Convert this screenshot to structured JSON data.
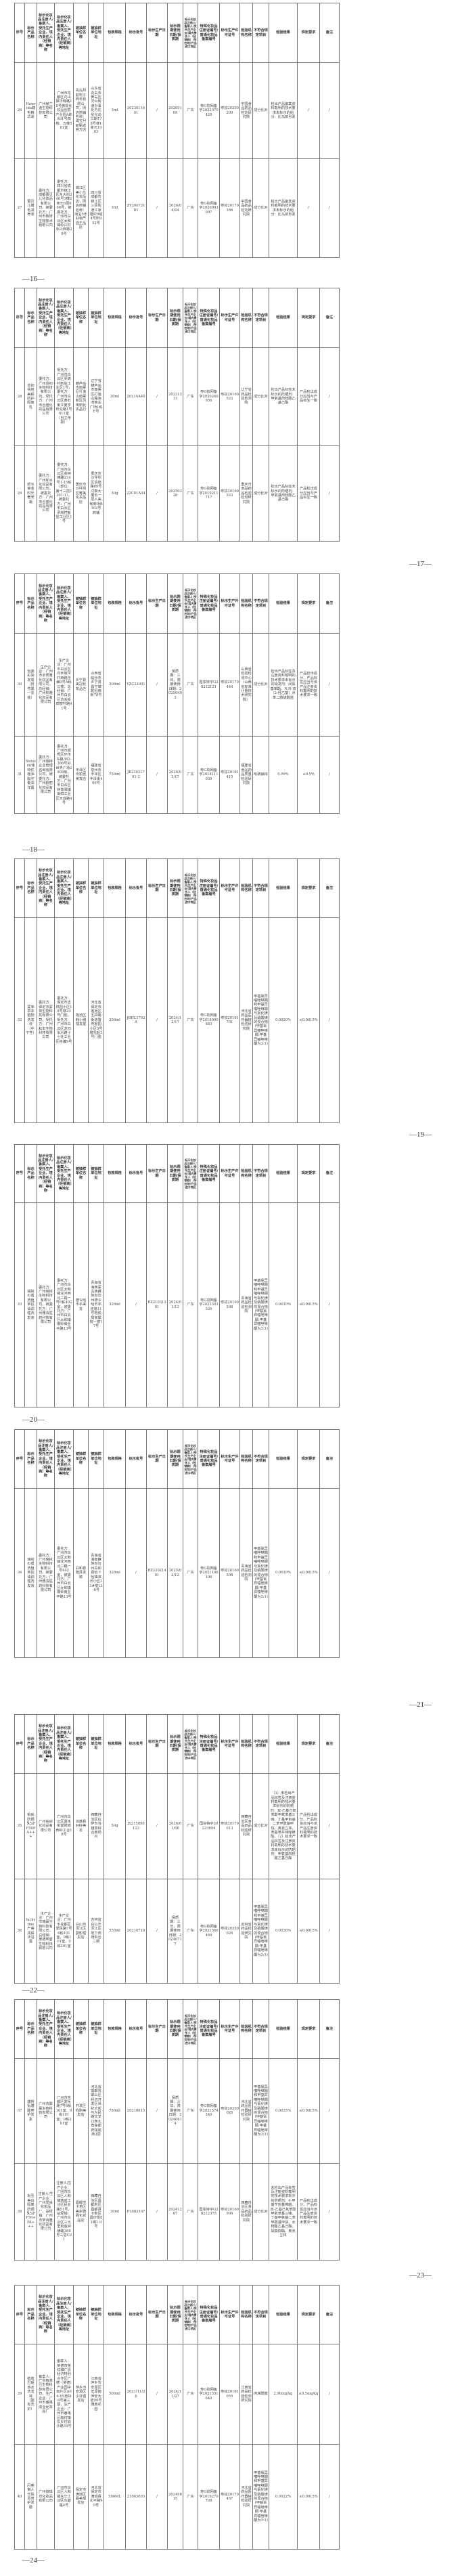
{
  "table_header": [
    "序号",
    "标示产品名称",
    "标示化妆品注册人/备案人、受托生产企业、境内责任人（经销商）等名称",
    "标示化妆品注册人/备案人、受托生产企业、境内责任人（经销商）等地址",
    "被抽样单位名称",
    "被抽样单位地址",
    "包装规格",
    "标示批号",
    "标示生产日期",
    "标示限期使用日期/保质期",
    "标示化妆品注册人/备案人/受托生产企业/境内责任人（经销商）/所在地/产品进口地区",
    "特殊化妆品注册证编号/普通化妆品备案编号",
    "标示生产许可证号",
    "检验机构名称",
    "不符合规定项目",
    "检验结果",
    "规定要求",
    "备注"
  ],
  "page_numbers": [
    "—16—",
    "—17—",
    "—18—",
    "—19—",
    "—20—",
    "—21—",
    "—22—",
    "—23—",
    "—24—"
  ],
  "rows": [
    [
      "26",
      "Hawrida睫毛精华液",
      "广州赫兰迪生物科技有限公司",
      "广州市花都区花山镇华辉路18号微观化妆品创意产业园A栋A01号四楼、五楼501室",
      "青岛月航电子商务有限公司，网店商铺名称：淘宝月航甄选官方店",
      "山东省青岛市黄岛区灵山街道办事处万达星光岛三期178号楼1单元1903",
      "3ml",
      "2023011601",
      "/",
      "20260109",
      "广东",
      "粤G妆网备字2022070428",
      "粤妆20200209",
      "中国食品药品检定研究院",
      "成分比对",
      "检出产品备案资料载明的技术要求未标示的组分：比马前列素",
      "/",
      "/"
    ],
    [
      "27",
      "蕾贝儿睫毛滋养液",
      "委托方：成都蕾贝儿化妆品有限公司，被委托方：广州市致妍生物技术有限公司",
      "委托方：四川省成都市锦江区东大街246号1幢2单元6层606号，被委托方：广州市白云区太和镇永兴村永兴西路29号",
      "锦江区美小允化妆品店，网店商铺名称：淘宝5年好物严选王品店",
      "四川省成都市锦江区三圣街道江家堰村9组4号附952号",
      "3ml",
      "ZY200721D1",
      "/",
      "2026/04/04",
      "广东",
      "粤G妆网备字2020003097",
      "粤妆20170166",
      "中国食品药品检定研究院",
      "成分比对",
      "检出产品备案资料载明的技术要求未标示的组分：比马前列素",
      "/",
      "/"
    ],
    [
      "28",
      "芸初祛痘美颜防护隔离乳",
      "委托方：广州芸初生物科技有限公司，受托方：广州市合盛化妆品有限公司",
      "受托方：广州市白云区罗岗村新星工业区1号，委托方：广州市白云区黄石街江夏学校北路1号611室（自主申报）",
      "葫芦岛市南票区打渔山南票新区风田丽化妆品行",
      "辽宁省葫芦岛市南票区打渔山路海湾商业广场1栋F号",
      "30ml",
      "20L14A40",
      "/",
      "20231213",
      "广东",
      "粤G妆网备字2020240956",
      "粤妆20160522",
      "辽宁省药品检验检测院",
      "成分比对",
      "检出产品标签未标示的防晒剂：甲氧基肉桂酸乙基己酯",
      "产品检出成分应当与产品标签一致",
      "/"
    ],
    [
      "29",
      "卸水睿金时光奢宠霜",
      "委托方：广州卸水化妆品有限公司，被委托方：广州市合盛化妆品有限公司",
      "委托方：广州市白云区金钟横路234号1-15栋（部位：第十三层1301-1），被委托方：广州市白云区罗岗村新星工业区1号",
      "重庆市沙坪坝区雅美化妆品店",
      "重庆市沙坪坝区渝碚路89号戊泰大厦负一层人美甸商场B102号商铺",
      "30g",
      "22C01A04",
      "/",
      "20250228",
      "广东",
      "粤G妆网备字2019211717",
      "粤妆20160522",
      "重庆市食品药品检验检测研究院",
      "成分比对",
      "检出产品标签未标示的防晒剂：甲氧基肉桂酸乙基己酯",
      "产品检出成分应当与产品标签一致",
      "/"
    ],
    [
      "30",
      "怡姿彩染发膏（自然黑一支装）",
      "生产企业：广州市京质雅化妆品有限公司，总经销：广州标雅化妆品有限公司",
      "生产企业：广州市白云区均禾街坪村西路自编3号A栋三楼，总经销：广州市白云区均禾街田寮村路41号",
      "乡宁县美冠化妆品店",
      "山西省临汾市乡宁县昌宁镇乾坦西街78号",
      "500ml",
      "YZC22001",
      "/",
      "保质期：三年，限期使用日期：20250403",
      "广东",
      "国妆特字G20212121",
      "粤妆20170444",
      "山西省检验检测中心（山西省标准计量技术研究院）",
      "成分比对",
      "检出产品标签及注册资料载明的技术要求未标示的染发剂：间氨基苯酚、N,N-双（2-羟乙基）对苯二胺硫酸盐",
      "产品检出成分、产品标签应当与该产品注册资料载明的技术要求一致",
      "/"
    ],
    [
      "31",
      "Swissen瑞特优能油脂平衡润洋露",
      "委托方：广州瑞特企业管理咨询有限公司，被委托方：广州欧丽化妆品有限公司",
      "委托方：广州市越秀区环市东路362-366号好世界广场2908房，被委托方：广州市白云区钟落潭镇良田工业区天成路4号",
      "丰泽区沃丽佳美发店",
      "福建省泉州市丰泽区丰泽街406号",
      "750ml",
      "JB23031701-2",
      "/",
      "2026/03/17",
      "广东",
      "粤G妆网备字2018111039",
      "粤妆20161415",
      "福建省食品药品质量检验研究院",
      "吡硫鎓锌",
      "0.59%",
      "≤0.5%",
      "/"
    ],
    [
      "32",
      "蒙菲草本植物洗发液（中干性）",
      "委托方：保定市蒙菲生物科技有限公司，受托方：广州耘本生物科技有限公司",
      "委托方：保定市吉祥园小区18号楼23号门脸，受托方：广州市白云区龙归永兴路十七社工业区自编9号",
      "莲池区韩小雅理发室",
      "河北省保定市莲池区五四路街道警苑家园小区5号楼东起1号门脸",
      "200ml",
      "JBHL1702A",
      "/",
      "2024/12/17",
      "广东",
      "粤G妆网备字2018000683",
      "粤妆20161701",
      "河北省药品医疗器械检验研究院",
      "甲基氯异噻唑啉酮和甲基异噻唑啉酮与氯化镁及硝酸镁的混合物(甲基氯异噻唑啉酮:甲基异噻唑啉酮为3:1)",
      "0.0020%",
      "≤0.0015%",
      "/"
    ],
    [
      "33",
      "瑞铱の盾洗植萃控油调理洗发液",
      "委托方：广州瑞铱生物科技有限公司，被委托方：广州雅清医药科技有限公司",
      "委托方：广州市白云区太和镇龙河西北二路一号E栋402室，被委托方：广州市白云区太和镇南岭南业中路13号",
      "德令哈市手美发",
      "青海省海西蒙古族藏族自治州德令哈市祁连路11号地税局家属院一楼17号",
      "320ml",
      "/",
      "RZ21031301",
      "2024/03/12",
      "广东",
      "粤G妆网备字2022303526",
      "粤妆20160598",
      "青海省药品检验检测院",
      "甲基氯异噻唑啉酮和甲基异噻唑啉酮与氯化镁及硝酸镁的混合物(甲基氯异噻唑啉酮:甲基异噻唑啉酮为3:1)",
      "0.0019%",
      "≤0.0015%",
      "/"
    ],
    [
      "34",
      "瑞铱の盾洗植萃控油调理洗发液",
      "委托方：广州瑞铱生物科技有限公司，被委托方：广州雅清医药科技有限公司",
      "委托方：广州市白云区太和镇龙河西北二路一号402室，被委托方：广州市白云区太和镇南岭南业中路13号",
      "共和县隆泽发廊",
      "青海省海南藏族自治州共和县恰卜恰镇滨河小区13#楼13-6号",
      "328ml",
      "/",
      "RZ22021401",
      "2025/02/12",
      "广东",
      "粤G妆网备字2021108106",
      "粤妆20160598",
      "青海省药品检验检测院",
      "甲基氯异噻唑啉酮和甲基异噻唑啉酮与氯化镁及硝酸镁的混合物(甲基氯异噻唑啉酮:甲基异噻唑啉酮为3:1)",
      "0.0019%",
      "≤0.0015%",
      "/"
    ],
    [
      "35",
      "铂尚防晒乳SPF50PA+++",
      "广州铂尚化妆品有限公司",
      "广州市白云区嘉禾街望岗岗西岭工业18号",
      "当雄县好好美妆",
      "西藏自治区拉萨市当雄县综合商场内",
      "50g",
      "JS215090123",
      "/",
      "2026/01/08",
      "广东",
      "国妆特字20223894",
      "粤妆20170013",
      "西藏自治区食品药品检验研究院",
      "成分比对",
      "（1）未检出产品标签及注册资料载明的技术要求标示的防晒剂：双-乙基己氧苯酚甲氧苯基三嗪、丁基甲氧基二苯甲酰基甲烷、奥克立林、苯基苯并咪唑磺酸。（2）检出产品标签及注册资料载明的技术要求未标示的防晒剂：甲氧基肉桂酸乙基己酯",
      "产品检出成分、产品标签应当与该产品注册资料载明的技术要求一致",
      "/"
    ],
    [
      "36",
      "luckyfine产荟润肤沐浴露",
      "生产企业：广州市瑞赢生物科技有限公司，总经销：吴德明曼生物科技有限公司",
      "生产企业：广州市花都区爱民路7号6栋101室、9栋101室、9栋201室",
      "白山市浑江区丽影理发店",
      "吉林省白山市浑江区地下商场百合二期",
      "550ml",
      "20210718",
      "/",
      "保质期：三年，限期使用日期：20240717",
      "广东",
      "粤G妆网备字2021566469",
      "粤妆20200026",
      "吉林省药品检验研究院",
      "甲基氯异噻唑啉酮和甲基异噻唑啉酮与氯化镁及硝酸镁的混合物(甲基氯异噻唑啉酮:甲基异噻唑啉酮为3:1)",
      "0.0036%",
      "≤0.0015%",
      "/"
    ],
    [
      "37",
      "康铭氨基酸养护发素",
      "广州市联赢生物科技有限公司",
      "广州市花都区爱民路7号6栋101室、9栋101室、9栋201室",
      "开发区钧刚美发店",
      "河北省邯郸市邯山区经济开发区世纪大街与为民路交叉口西北角金都宾馆底商2层",
      "750ml",
      "20210615",
      "/",
      "保质期：三年，限期使用日期：20240614",
      "广东",
      "粤G妆网备字2021574240",
      "粤妆20200026",
      "河北省药品医疗器械检验研究院",
      "甲基氯异噻唑啉酮和甲基异噻唑啉酮与氯化镁及硝酸镁的混合物(甲基氯异噻唑啉酮:甲基异噻唑啉酮为3:1)",
      "0.0035%",
      "≤0.0015%",
      "/"
    ],
    [
      "38",
      "尚圣美白隔离防晒乳SPF50+PA+++",
      "注册人/生产企业：广州爱采化妆品厂，总经销：广州市梦诗雅化妆品有限公司",
      "注册人/生产企业：广州市白云区人和镇西成工业区民业路51号，总经销：广州市白云区三元里街金钟横路388号三层C01",
      "昌都市卡若区美余雅阁化妆品店",
      "西藏自治区昌都地区昌都县卡若区昌庆街81幢1-9号",
      "30ml",
      "PL082107",
      "/",
      "20241207",
      "广东",
      "国妆特字G20212375",
      "粤妆20160994",
      "西藏自治区食品药品检验研究院",
      "成分比对",
      "未检出产品标签及注册资料载明的技术要求标示的防晒剂：4-甲基苄亚基樟脑、双-乙基己氧苯酚甲氧苯基三嗪、丁基甲氧基二苯甲酰基甲烷、水杨酸乙基己酯、胡莫柳酯、奥克立林",
      "产品检出成分、产品标签应当与该产品注册资料载明的技术要求一致",
      "/"
    ],
    [
      "39",
      "植萃巴姬草本洗发液（固发洗护）",
      "备案人：广东植萃巴生物科技有限公司，生产企业：广州市番禺成业化妆品厂",
      "备案人：英德市英红镇广清经济特别合作区广德（英德）产业园中南片区A04-05地块6号第三层，生产企业：广州市番禺区南村镇东乡村旧沙路34号",
      "萍乡市安源区小芬理发店",
      "江西省萍乡市安源区安源镇萍安大道99号雅典花园",
      "500ml",
      "2021/11/28",
      "/",
      "2024/11/27",
      "广东",
      "粤G妆网备字2021551640",
      "粤妆20161055",
      "江西省药品检验检测研究院",
      "丙烯酰胺",
      "2.96mg/kg",
      "≤0.5mg/kg",
      "/"
    ],
    [
      "40",
      "闪亮懒人珍珠青修护发膜",
      "广州御琪坊化妆品有限公司",
      "广州市白云区人和镇东华工业区东碧路4号",
      "保定市满城区嘉美理发店",
      "河北省保定市满城县北平路99号",
      "500ML",
      "21063603",
      "/",
      "20240615",
      "广东",
      "粤G妆网备字2019270708",
      "粤妆20170457",
      "河北省药品医疗器械检验研究院",
      "甲基氯异噻唑啉酮和甲基异噻唑啉酮与氯化镁及硝酸镁的混合物(甲基氯异噻唑啉酮:甲基异噻唑啉酮为3:1)",
      "0.0022%",
      "≤0.0015%",
      "/"
    ]
  ]
}
